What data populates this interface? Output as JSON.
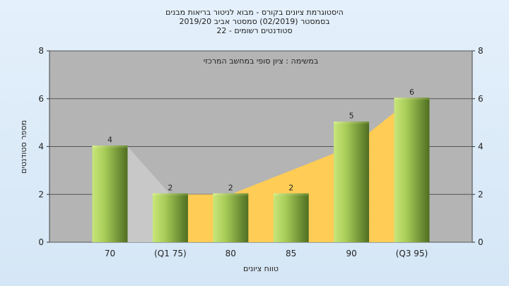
{
  "header": {
    "line1": "היסטוגרמת ציונים בקורס - מבוא לניטור בריאות מבנים",
    "line2": "בסמסטר  (02/2019)  סמסטר אביב 2019/20",
    "line3": "סטודנטים רשומים - 22"
  },
  "chart_data": {
    "type": "bar",
    "annotation": "במשימה : ציון סופי במחשב המרכזי",
    "xlabel": "טווח ציונים",
    "ylabel": "מספר סטודנטים",
    "categories": [
      "70",
      "(Q1 75)",
      "80",
      "85",
      "90",
      "(Q3 95)"
    ],
    "values": [
      4,
      2,
      2,
      2,
      5,
      6
    ],
    "ylim": [
      0,
      8
    ],
    "yticks": [
      0,
      2,
      4,
      6,
      8
    ],
    "grid": true,
    "background_area": {
      "type": "area",
      "x": [
        "(Q1 75)",
        "80",
        "85",
        "90",
        "(Q3 95)"
      ],
      "values": [
        2,
        2,
        3,
        4,
        6
      ],
      "color": "#ffcc55"
    },
    "colors": {
      "plot_bg": "#b4b4b4",
      "bar_light": "#c8e67a",
      "bar_dark": "#5a7a2a",
      "area": "#ffcc55",
      "gray_area": "#c8c8c8"
    }
  }
}
